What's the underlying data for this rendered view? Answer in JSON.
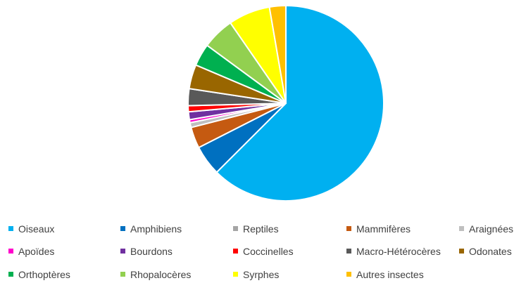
{
  "chart_data": {
    "type": "pie",
    "title": "",
    "legend_position": "bottom",
    "slices": [
      {
        "label": "Oiseaux",
        "value": 62.5,
        "color": "#00B0F0"
      },
      {
        "label": "Amphibiens",
        "value": 5.0,
        "color": "#0070C0"
      },
      {
        "label": "Reptiles",
        "value": 0.0,
        "color": "#A5A5A5"
      },
      {
        "label": "Mammifères",
        "value": 3.5,
        "color": "#C55A11"
      },
      {
        "label": "Araignées",
        "value": 0.8,
        "color": "#BFBFBF"
      },
      {
        "label": "Apoïdes",
        "value": 0.5,
        "color": "#FF00CC"
      },
      {
        "label": "Bourdons",
        "value": 1.3,
        "color": "#7030A0"
      },
      {
        "label": "Coccinelles",
        "value": 1.0,
        "color": "#FF0000"
      },
      {
        "label": "Macro-Hétérocères",
        "value": 2.8,
        "color": "#595959"
      },
      {
        "label": "Odonates",
        "value": 4.0,
        "color": "#996600"
      },
      {
        "label": "Orthoptères",
        "value": 3.7,
        "color": "#00B050"
      },
      {
        "label": "Rhopalocères",
        "value": 5.3,
        "color": "#92D050"
      },
      {
        "label": "Syrphes",
        "value": 6.9,
        "color": "#FFFF00"
      },
      {
        "label": "Autres insectes",
        "value": 2.7,
        "color": "#FFC000"
      }
    ]
  }
}
